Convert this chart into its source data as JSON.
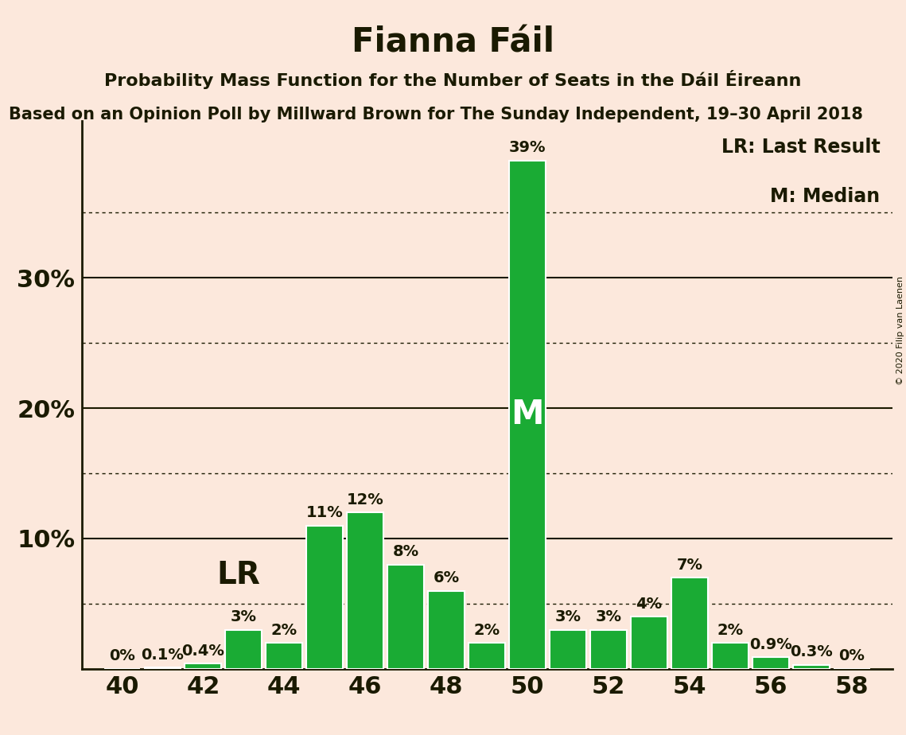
{
  "title": "Fianna Fáil",
  "subtitle": "Probability Mass Function for the Number of Seats in the Dáil Éireann",
  "source": "Based on an Opinion Poll by Millward Brown for The Sunday Independent, 19–30 April 2018",
  "copyright": "© 2020 Filip van Laenen",
  "seats": [
    40,
    41,
    42,
    43,
    44,
    45,
    46,
    47,
    48,
    49,
    50,
    51,
    52,
    53,
    54,
    55,
    56,
    57,
    58
  ],
  "probabilities": [
    0.0,
    0.001,
    0.004,
    0.03,
    0.02,
    0.11,
    0.12,
    0.08,
    0.06,
    0.02,
    0.39,
    0.03,
    0.03,
    0.04,
    0.07,
    0.02,
    0.009,
    0.003,
    0.0
  ],
  "labels": [
    "0%",
    "0.1%",
    "0.4%",
    "3%",
    "2%",
    "11%",
    "12%",
    "8%",
    "6%",
    "2%",
    "39%",
    "3%",
    "3%",
    "4%",
    "7%",
    "2%",
    "0.9%",
    "0.3%",
    "0%"
  ],
  "bar_color": "#1aab34",
  "bar_edge_color": "#ffffff",
  "background_color": "#fce8dc",
  "text_color": "#1a1a00",
  "lr_seat": 44,
  "median_seat": 50,
  "solid_yticks": [
    0.1,
    0.2,
    0.3
  ],
  "dotted_yticks": [
    0.05,
    0.15,
    0.25,
    0.35
  ],
  "ylim": [
    0,
    0.42
  ],
  "xlim": [
    39.0,
    59.0
  ],
  "title_fontsize": 30,
  "subtitle_fontsize": 16,
  "source_fontsize": 15,
  "ylabel_fontsize": 22,
  "xlabel_fontsize": 22,
  "bar_label_fontsize": 14,
  "legend_fontsize": 17,
  "lr_fontsize": 28,
  "m_fontsize": 30
}
